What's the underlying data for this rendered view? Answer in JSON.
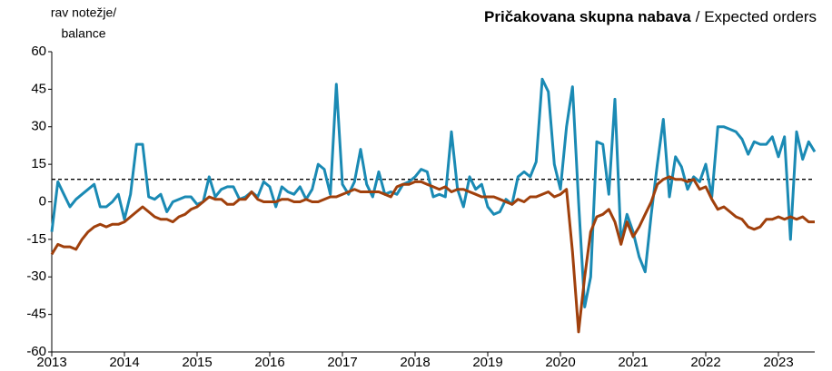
{
  "chart_data": {
    "type": "line",
    "title": "Pričakovana skupna nabava",
    "subtitle": "/ Expected orders",
    "y_label": [
      "rav notežje/",
      "balance"
    ],
    "categories": [
      "2013",
      null,
      null,
      null,
      null,
      null,
      null,
      null,
      null,
      null,
      null,
      null,
      "2014",
      null,
      null,
      null,
      null,
      null,
      null,
      null,
      null,
      null,
      null,
      null,
      "2015",
      null,
      null,
      null,
      null,
      null,
      null,
      null,
      null,
      null,
      null,
      null,
      "2016",
      null,
      null,
      null,
      null,
      null,
      null,
      null,
      null,
      null,
      null,
      null,
      "2017",
      null,
      null,
      null,
      null,
      null,
      null,
      null,
      null,
      null,
      null,
      null,
      "2018",
      null,
      null,
      null,
      null,
      null,
      null,
      null,
      null,
      null,
      null,
      null,
      "2019",
      null,
      null,
      null,
      null,
      null,
      null,
      null,
      null,
      null,
      null,
      null,
      "2020",
      null,
      null,
      null,
      null,
      null,
      null,
      null,
      null,
      null,
      null,
      null,
      "2021",
      null,
      null,
      null,
      null,
      null,
      null,
      null,
      null,
      null,
      null,
      null,
      "2022",
      null,
      null,
      null,
      null,
      null,
      null,
      null,
      null,
      null,
      null,
      null,
      "2023",
      null,
      null,
      null,
      null,
      null,
      null
    ],
    "series": [
      {
        "color": "#1a8ab4",
        "values": [
          -12,
          8,
          3,
          -2,
          1,
          3,
          5,
          7,
          -2,
          -2,
          0,
          3,
          -7,
          3,
          23,
          23,
          2,
          1,
          3,
          -4,
          0,
          1,
          2,
          2,
          -1,
          0,
          10,
          2,
          5,
          6,
          6,
          1,
          2,
          4,
          2,
          8,
          6,
          -2,
          6,
          4,
          3,
          6,
          1,
          5,
          15,
          13,
          3,
          47,
          7,
          3,
          8,
          21,
          7,
          2,
          12,
          3,
          4,
          3,
          7,
          8,
          10,
          13,
          12,
          2,
          3,
          2,
          28,
          5,
          -2,
          10,
          5,
          7,
          -2,
          -5,
          -4,
          1,
          -1,
          10,
          12,
          10,
          16,
          49,
          44,
          15,
          5,
          30,
          46,
          0,
          -42,
          -30,
          24,
          23,
          3,
          41,
          -16,
          -5,
          -12,
          -22,
          -28,
          -5,
          15,
          33,
          2,
          18,
          14,
          5,
          10,
          8,
          15,
          2,
          30,
          30,
          29,
          28,
          25,
          19,
          24,
          23,
          23,
          26,
          18,
          26,
          -15,
          28,
          17,
          24,
          20
        ]
      },
      {
        "color": "#a0400c",
        "values": [
          -21,
          -17,
          -18,
          -18,
          -19,
          -15,
          -12,
          -10,
          -9,
          -10,
          -9,
          -9,
          -8,
          -6,
          -4,
          -2,
          -4,
          -6,
          -7,
          -7,
          -8,
          -6,
          -5,
          -3,
          -2,
          0,
          2,
          1,
          1,
          -1,
          -1,
          1,
          1,
          4,
          1,
          0,
          0,
          0,
          1,
          1,
          0,
          0,
          1,
          0,
          0,
          1,
          2,
          2,
          3,
          4,
          5,
          4,
          4,
          4,
          4,
          3,
          2,
          6,
          7,
          7,
          8,
          8,
          7,
          6,
          5,
          6,
          4,
          5,
          5,
          4,
          3,
          2,
          2,
          2,
          1,
          0,
          -1,
          1,
          0,
          2,
          2,
          3,
          4,
          2,
          3,
          5,
          -20,
          -52,
          -30,
          -12,
          -6,
          -5,
          -3,
          -8,
          -17,
          -8,
          -14,
          -10,
          -5,
          0,
          7,
          9,
          10,
          9,
          9,
          8,
          9,
          5,
          6,
          1,
          -3,
          -2,
          -4,
          -6,
          -7,
          -10,
          -11,
          -10,
          -7,
          -7,
          -6,
          -7,
          -6,
          -7,
          -6,
          -8,
          -8
        ]
      }
    ],
    "reference_line": 9,
    "ylim": [
      -60,
      60
    ],
    "yticks": [
      -60,
      -45,
      -30,
      -15,
      0,
      15,
      30,
      45,
      60
    ],
    "grid": false
  }
}
